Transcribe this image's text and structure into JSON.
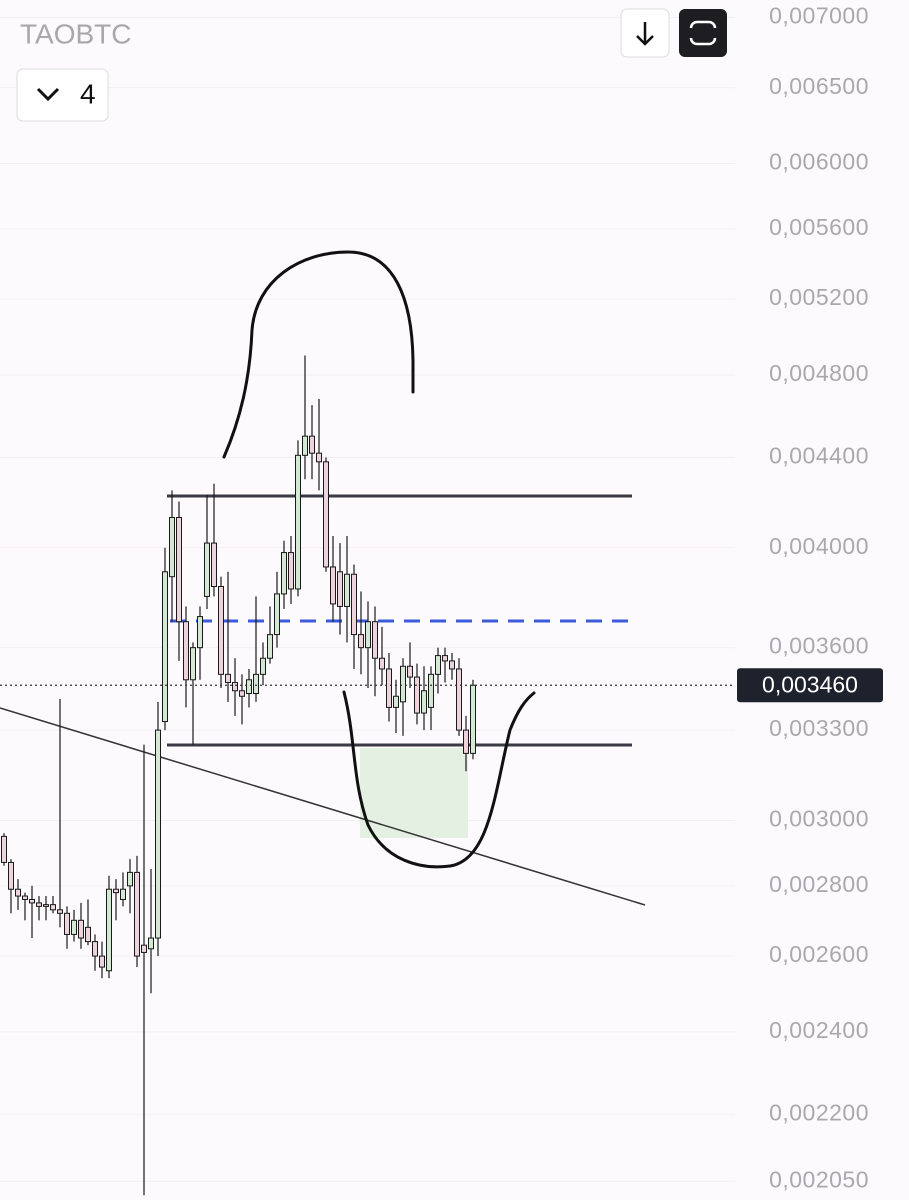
{
  "chart_data": {
    "type": "candlestick",
    "title": "TAOBTC",
    "interval_button": "4",
    "log_scale": true,
    "ylim": [
      0.00201,
      0.00713
    ],
    "yticks": [
      {
        "value": 0.007,
        "label": "0,007000"
      },
      {
        "value": 0.0065,
        "label": "0,006500"
      },
      {
        "value": 0.006,
        "label": "0,006000"
      },
      {
        "value": 0.0056,
        "label": "0,005600"
      },
      {
        "value": 0.0052,
        "label": "0,005200"
      },
      {
        "value": 0.0048,
        "label": "0,004800"
      },
      {
        "value": 0.0044,
        "label": "0,004400"
      },
      {
        "value": 0.004,
        "label": "0,004000"
      },
      {
        "value": 0.0036,
        "label": "0,003600"
      },
      {
        "value": 0.0033,
        "label": "0,003300"
      },
      {
        "value": 0.003,
        "label": "0,003000"
      },
      {
        "value": 0.0028,
        "label": "0,002800"
      },
      {
        "value": 0.0026,
        "label": "0,002600"
      },
      {
        "value": 0.0024,
        "label": "0,002400"
      },
      {
        "value": 0.0022,
        "label": "0,002200"
      },
      {
        "value": 0.00205,
        "label": "0,002050"
      }
    ],
    "last_price": {
      "value": 0.00346,
      "label": "0,003460"
    },
    "up_color": "#d3e9d3",
    "down_color": "#ecd3dc",
    "open": [
      0.00295,
      0.00287,
      0.00279,
      0.00277,
      0.00276,
      0.00275,
      0.00274,
      0.002745,
      0.00273,
      0.00272,
      0.00266,
      0.0027,
      0.00268,
      0.00264,
      0.0026,
      0.00256,
      0.00279,
      0.00276,
      0.0028,
      0.00284,
      0.00263,
      0.00262,
      0.00265,
      0.00333,
      0.00388,
      0.00413,
      0.0037,
      0.00348,
      0.0036,
      0.0038,
      0.00402,
      0.00384,
      0.0035,
      0.00347,
      0.00344,
      0.00343,
      0.00343,
      0.0035,
      0.00356,
      0.00365,
      0.00381,
      0.00398,
      0.00383,
      0.00441,
      0.0045,
      0.00442,
      0.00438,
      0.00392,
      0.0039,
      0.00376,
      0.00389,
      0.00365,
      0.0036,
      0.0037,
      0.00356,
      0.00352,
      0.00338,
      0.0034,
      0.00353,
      0.00349,
      0.00336,
      0.00338,
      0.0035,
      0.00357,
      0.00355,
      0.00352,
      0.0033,
      0.00322
    ],
    "high": [
      0.00296,
      0.00288,
      0.00282,
      0.00278,
      0.0028,
      0.00277,
      0.00277,
      0.00277,
      0.00341,
      0.00274,
      0.00273,
      0.00275,
      0.00276,
      0.00266,
      0.00264,
      0.00283,
      0.00282,
      0.00284,
      0.00288,
      0.00289,
      0.00325,
      0.00285,
      0.0034,
      0.004,
      0.00425,
      0.0042,
      0.00376,
      0.00362,
      0.00376,
      0.00423,
      0.00428,
      0.00388,
      0.0039,
      0.00356,
      0.0035,
      0.00352,
      0.0038,
      0.00362,
      0.00376,
      0.0039,
      0.00403,
      0.00405,
      0.00448,
      0.0049,
      0.00465,
      0.00468,
      0.0044,
      0.00405,
      0.00402,
      0.00405,
      0.00393,
      0.00382,
      0.00378,
      0.00376,
      0.00368,
      0.00358,
      0.00348,
      0.00356,
      0.00362,
      0.00354,
      0.00353,
      0.00353,
      0.0036,
      0.0036,
      0.00358,
      0.00356,
      0.00335,
      0.00348
    ],
    "low": [
      0.00286,
      0.00272,
      0.00273,
      0.0027,
      0.00265,
      0.0027,
      0.0027,
      0.00272,
      0.00268,
      0.00262,
      0.00264,
      0.00262,
      0.00263,
      0.00256,
      0.00254,
      0.00254,
      0.0027,
      0.00274,
      0.00272,
      0.00257,
      0.00202,
      0.0025,
      0.0026,
      0.0033,
      0.0037,
      0.00355,
      0.00338,
      0.00325,
      0.00348,
      0.00375,
      0.0038,
      0.00345,
      0.0034,
      0.00335,
      0.00332,
      0.00338,
      0.0034,
      0.00346,
      0.00354,
      0.0036,
      0.00375,
      0.00377,
      0.0038,
      0.0043,
      0.0043,
      0.00425,
      0.0039,
      0.0037,
      0.00365,
      0.00362,
      0.00352,
      0.0035,
      0.00345,
      0.00342,
      0.00346,
      0.00333,
      0.00329,
      0.00328,
      0.00345,
      0.00332,
      0.0033,
      0.0033,
      0.00343,
      0.00347,
      0.00348,
      0.00328,
      0.00316,
      0.0032
    ],
    "close": [
      0.00287,
      0.00279,
      0.00277,
      0.00276,
      0.00275,
      0.00274,
      0.002745,
      0.00273,
      0.00272,
      0.00266,
      0.0027,
      0.00265,
      0.00264,
      0.0026,
      0.00257,
      0.00279,
      0.00278,
      0.00279,
      0.00284,
      0.0026,
      0.00261,
      0.00265,
      0.0033,
      0.0039,
      0.00413,
      0.0037,
      0.00348,
      0.0036,
      0.00372,
      0.00402,
      0.00384,
      0.0035,
      0.00347,
      0.00344,
      0.00342,
      0.00348,
      0.0035,
      0.00356,
      0.00365,
      0.00381,
      0.00398,
      0.00383,
      0.00441,
      0.0045,
      0.00442,
      0.00438,
      0.00392,
      0.00377,
      0.00376,
      0.00389,
      0.00365,
      0.0036,
      0.0037,
      0.00356,
      0.00352,
      0.00338,
      0.00342,
      0.00353,
      0.00349,
      0.00336,
      0.00344,
      0.0035,
      0.00357,
      0.00355,
      0.00352,
      0.0033,
      0.00322,
      0.00346
    ]
  }
}
